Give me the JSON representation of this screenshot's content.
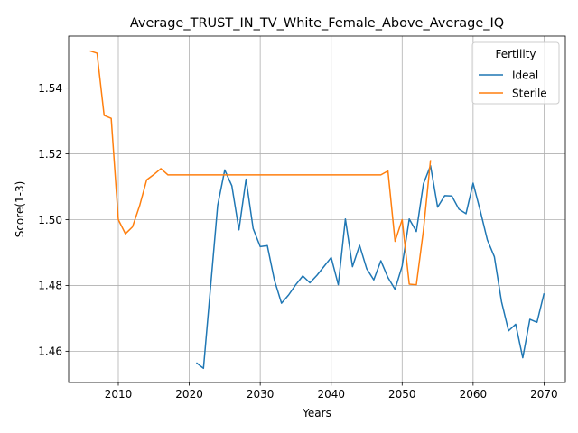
{
  "chart_data": {
    "type": "line",
    "title": "Average_TRUST_IN_TV_White_Female_Above_Average_IQ",
    "xlabel": "Years",
    "ylabel": "Score(1-3)",
    "xlim": [
      2003,
      2073
    ],
    "ylim": [
      1.4505,
      1.5558
    ],
    "xticks": [
      2010,
      2020,
      2030,
      2040,
      2050,
      2060,
      2070
    ],
    "yticks": [
      1.46,
      1.48,
      1.5,
      1.52,
      1.54
    ],
    "ytick_labels": [
      "1.46",
      "1.48",
      "1.50",
      "1.52",
      "1.54"
    ],
    "grid": true,
    "legend": {
      "title": "Fertility",
      "placement": "top-right"
    },
    "series": [
      {
        "name": "Ideal",
        "color": "#1f77b4",
        "x": [
          2021,
          2022,
          2023,
          2024,
          2025,
          2026,
          2027,
          2028,
          2029,
          2030,
          2031,
          2032,
          2033,
          2034,
          2035,
          2036,
          2037,
          2038,
          2039,
          2040,
          2041,
          2042,
          2043,
          2044,
          2045,
          2046,
          2047,
          2048,
          2049,
          2050,
          2051,
          2052,
          2053,
          2054,
          2055,
          2056,
          2057,
          2058,
          2059,
          2060,
          2061,
          2062,
          2063,
          2064,
          2065,
          2066,
          2067,
          2068,
          2069,
          2070
        ],
        "y": [
          1.4565,
          1.4548,
          1.4795,
          1.5043,
          1.5151,
          1.5103,
          1.4969,
          1.5123,
          1.4973,
          1.4918,
          1.4921,
          1.4816,
          1.4746,
          1.4771,
          1.4802,
          1.4829,
          1.4808,
          1.4831,
          1.4858,
          1.4885,
          1.4802,
          1.5002,
          1.4857,
          1.4922,
          1.4851,
          1.4817,
          1.4875,
          1.4824,
          1.4788,
          1.4859,
          1.5002,
          1.4964,
          1.5109,
          1.5164,
          1.5038,
          1.5073,
          1.5072,
          1.5032,
          1.5018,
          1.5111,
          1.5028,
          1.4939,
          1.4887,
          1.4751,
          1.4662,
          1.4682,
          1.458,
          1.4697,
          1.4688,
          1.4776
        ]
      },
      {
        "name": "Sterile",
        "color": "#ff7f0e",
        "x": [
          2006,
          2007,
          2008,
          2009,
          2010,
          2011,
          2012,
          2013,
          2014,
          2015,
          2016,
          2017,
          2018,
          2019,
          2020,
          2021,
          2022,
          2023,
          2024,
          2025,
          2026,
          2027,
          2028,
          2029,
          2030,
          2031,
          2032,
          2033,
          2034,
          2035,
          2036,
          2037,
          2038,
          2039,
          2040,
          2041,
          2042,
          2043,
          2044,
          2045,
          2046,
          2047,
          2048,
          2049,
          2050,
          2051,
          2052,
          2053,
          2054
        ],
        "y": [
          1.5513,
          1.5506,
          1.5317,
          1.5308,
          1.5,
          1.4957,
          1.4978,
          1.5042,
          1.5121,
          1.5137,
          1.5155,
          1.5136,
          1.5136,
          1.5136,
          1.5136,
          1.5136,
          1.5136,
          1.5136,
          1.5136,
          1.5136,
          1.5136,
          1.5136,
          1.5136,
          1.5136,
          1.5136,
          1.5136,
          1.5136,
          1.5136,
          1.5136,
          1.5136,
          1.5136,
          1.5136,
          1.5136,
          1.5136,
          1.5136,
          1.5136,
          1.5136,
          1.5136,
          1.5136,
          1.5136,
          1.5136,
          1.5136,
          1.5148,
          1.4934,
          1.5,
          1.4804,
          1.4802,
          1.4968,
          1.5181
        ]
      }
    ]
  }
}
